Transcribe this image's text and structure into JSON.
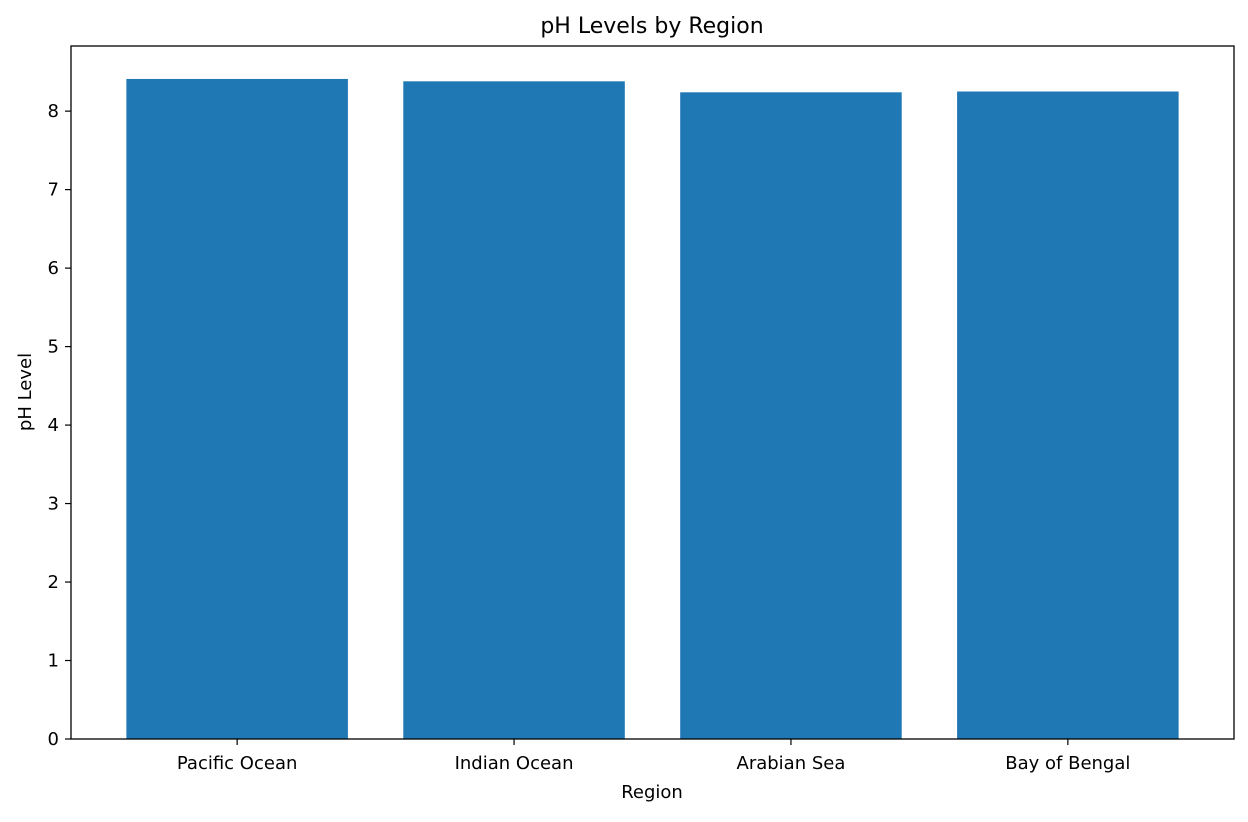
{
  "chart_data": {
    "type": "bar",
    "title": "pH Levels by Region",
    "xlabel": "Region",
    "ylabel": "pH Level",
    "categories": [
      "Pacific Ocean",
      "Indian Ocean",
      "Arabian Sea",
      "Bay of Bengal"
    ],
    "values": [
      8.41,
      8.38,
      8.24,
      8.25
    ],
    "ylim": [
      0,
      8.83
    ],
    "yticks": [
      0,
      1,
      2,
      3,
      4,
      5,
      6,
      7,
      8
    ],
    "grid": false,
    "legend": "none",
    "bar_color": "#1f77b4"
  }
}
